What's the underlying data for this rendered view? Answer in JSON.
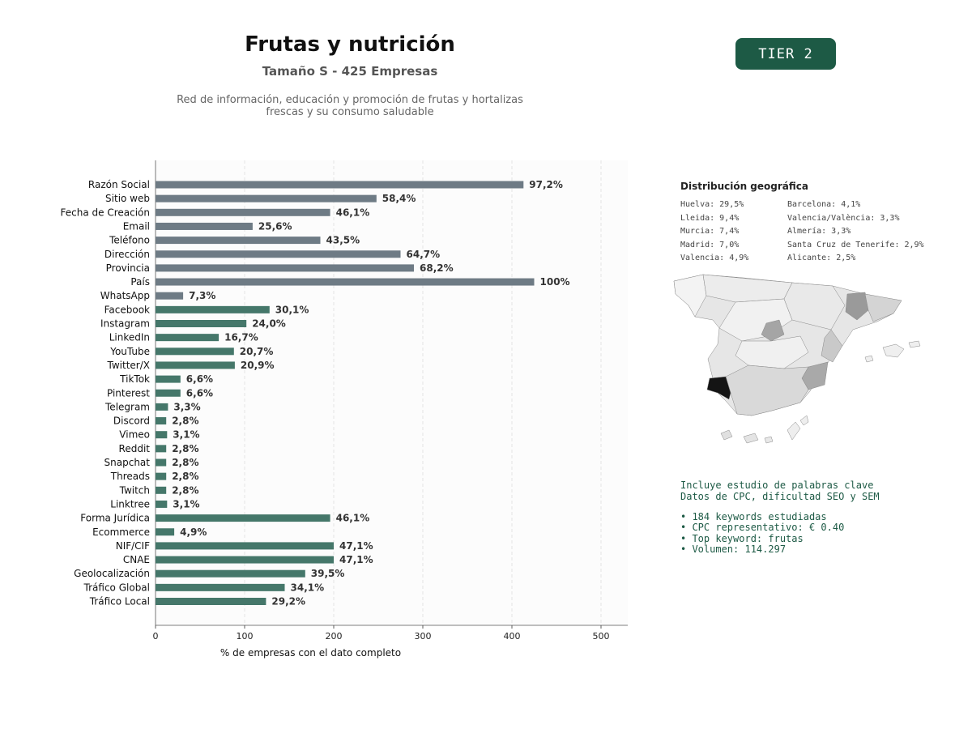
{
  "header": {
    "title": "Frutas y nutrición",
    "subtitle": "Tamaño S - 425 Empresas",
    "description_line1": "Red de información, educación y promoción de frutas y hortalizas",
    "description_line2": "frescas y su consumo saludable",
    "tier_label": "TIER 2",
    "tier_color": "#1d5a45"
  },
  "chart_data": {
    "type": "bar",
    "orientation": "horizontal",
    "xlabel": "% de empresas con el dato completo",
    "xlim": [
      0,
      530
    ],
    "xticks": [
      0,
      100,
      200,
      300,
      400,
      500
    ],
    "grid": "vertical dashed",
    "colors": {
      "basic": "#6e7b85",
      "digital": "#45776a"
    },
    "bars": [
      {
        "label": "Razón Social",
        "count": 413,
        "pct": "97,2%",
        "group": "basic"
      },
      {
        "label": "Sitio web",
        "count": 248,
        "pct": "58,4%",
        "group": "basic"
      },
      {
        "label": "Fecha de Creación",
        "count": 196,
        "pct": "46,1%",
        "group": "basic"
      },
      {
        "label": "Email",
        "count": 109,
        "pct": "25,6%",
        "group": "basic"
      },
      {
        "label": "Teléfono",
        "count": 185,
        "pct": "43,5%",
        "group": "basic"
      },
      {
        "label": "Dirección",
        "count": 275,
        "pct": "64,7%",
        "group": "basic"
      },
      {
        "label": "Provincia",
        "count": 290,
        "pct": "68,2%",
        "group": "basic"
      },
      {
        "label": "País",
        "count": 425,
        "pct": "100%",
        "group": "basic"
      },
      {
        "label": "WhatsApp",
        "count": 31,
        "pct": "7,3%",
        "group": "basic"
      },
      {
        "label": "Facebook",
        "count": 128,
        "pct": "30,1%",
        "group": "digital"
      },
      {
        "label": "Instagram",
        "count": 102,
        "pct": "24,0%",
        "group": "digital"
      },
      {
        "label": "LinkedIn",
        "count": 71,
        "pct": "16,7%",
        "group": "digital"
      },
      {
        "label": "YouTube",
        "count": 88,
        "pct": "20,7%",
        "group": "digital"
      },
      {
        "label": "Twitter/X",
        "count": 89,
        "pct": "20,9%",
        "group": "digital"
      },
      {
        "label": "TikTok",
        "count": 28,
        "pct": "6,6%",
        "group": "digital"
      },
      {
        "label": "Pinterest",
        "count": 28,
        "pct": "6,6%",
        "group": "digital"
      },
      {
        "label": "Telegram",
        "count": 14,
        "pct": "3,3%",
        "group": "digital"
      },
      {
        "label": "Discord",
        "count": 12,
        "pct": "2,8%",
        "group": "digital"
      },
      {
        "label": "Vimeo",
        "count": 13,
        "pct": "3,1%",
        "group": "digital"
      },
      {
        "label": "Reddit",
        "count": 12,
        "pct": "2,8%",
        "group": "digital"
      },
      {
        "label": "Snapchat",
        "count": 12,
        "pct": "2,8%",
        "group": "digital"
      },
      {
        "label": "Threads",
        "count": 12,
        "pct": "2,8%",
        "group": "digital"
      },
      {
        "label": "Twitch",
        "count": 12,
        "pct": "2,8%",
        "group": "digital"
      },
      {
        "label": "Linktree",
        "count": 13,
        "pct": "3,1%",
        "group": "digital"
      },
      {
        "label": "Forma Jurídica",
        "count": 196,
        "pct": "46,1%",
        "group": "digital"
      },
      {
        "label": "Ecommerce",
        "count": 21,
        "pct": "4,9%",
        "group": "digital"
      },
      {
        "label": "NIF/CIF",
        "count": 200,
        "pct": "47,1%",
        "group": "digital"
      },
      {
        "label": "CNAE",
        "count": 200,
        "pct": "47,1%",
        "group": "digital"
      },
      {
        "label": "Geolocalización",
        "count": 168,
        "pct": "39,5%",
        "group": "digital"
      },
      {
        "label": "Tráfico Global",
        "count": 145,
        "pct": "34,1%",
        "group": "digital"
      },
      {
        "label": "Tráfico Local",
        "count": 124,
        "pct": "29,2%",
        "group": "digital"
      }
    ]
  },
  "geo": {
    "title": "Distribución geográfica",
    "left": [
      "Huelva: 29,5%",
      "Lleida: 9,4%",
      "Murcia: 7,4%",
      "Madrid: 7,0%",
      "Valencia: 4,9%"
    ],
    "right": [
      "Barcelona: 4,1%",
      "Valencia/València: 3,3%",
      "Almería: 3,3%",
      "Santa Cruz de Tenerife: 2,9%",
      "Alicante: 2,5%"
    ]
  },
  "keywords": {
    "line1": "Incluye estudio de palabras clave",
    "line2": "Datos de CPC, dificultad SEO y SEM",
    "bullets": [
      "• 184 keywords estudiadas",
      "• CPC representativo: € 0.40",
      "• Top keyword: frutas",
      "• Volumen: 114.297"
    ]
  }
}
